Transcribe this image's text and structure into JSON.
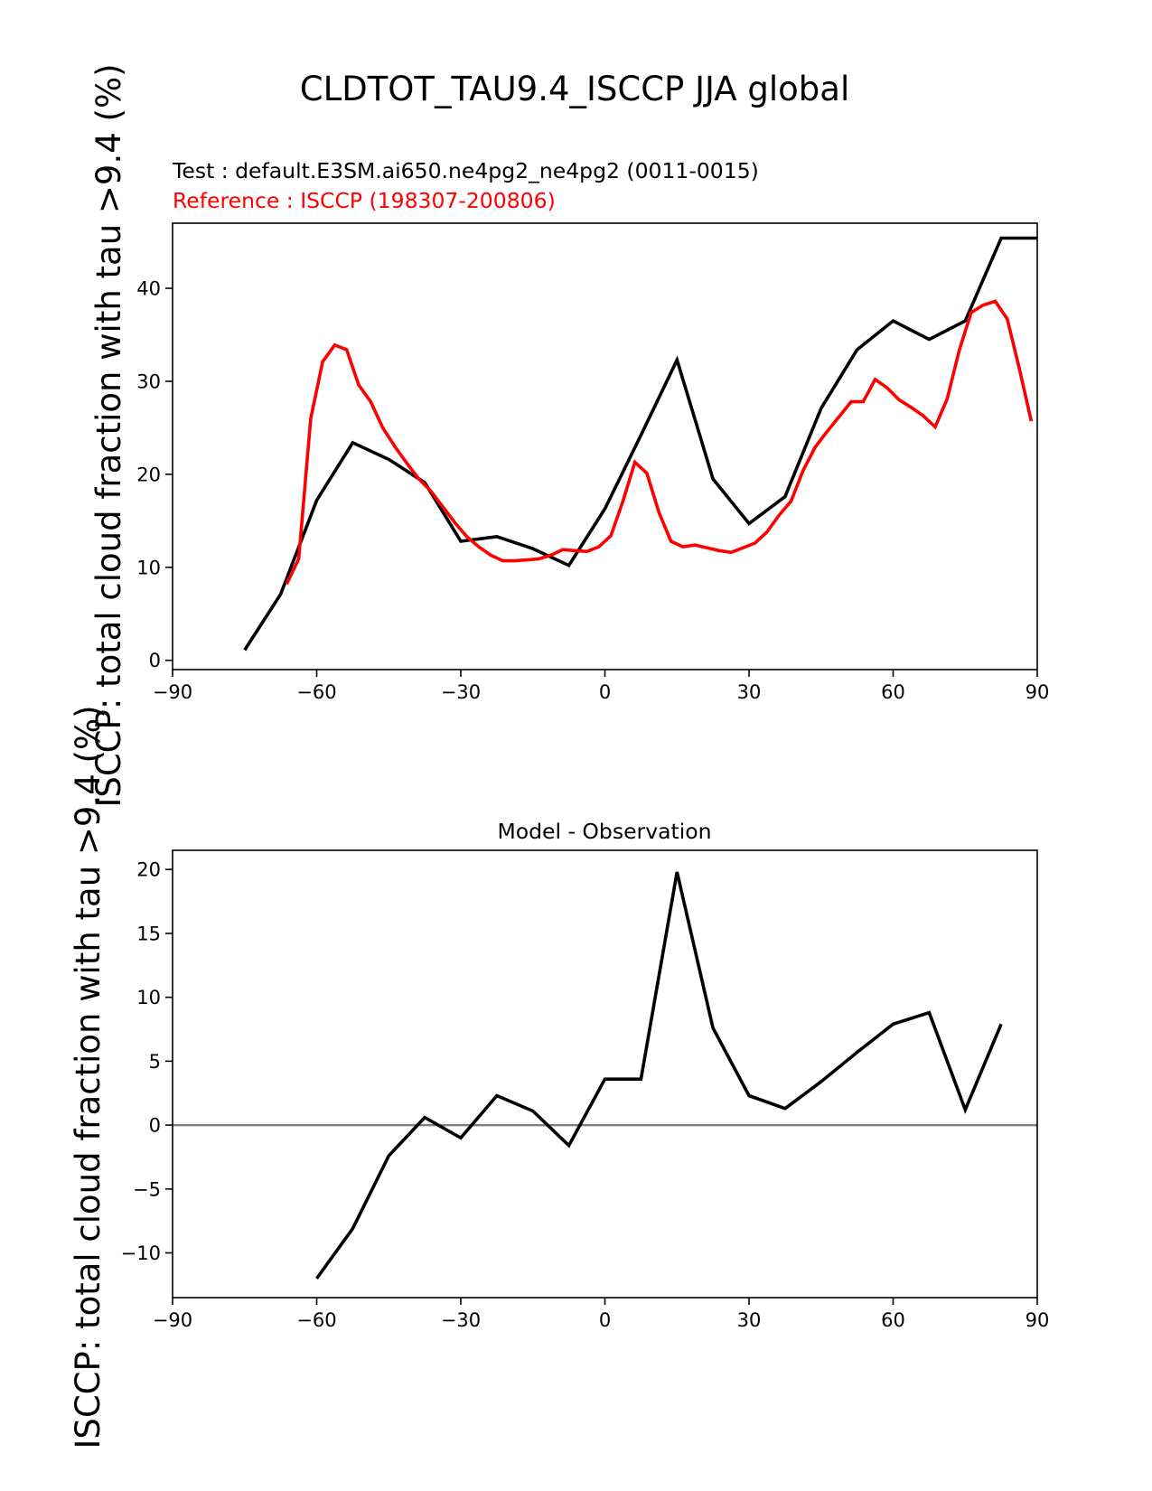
{
  "figure": {
    "title": "CLDTOT_TAU9.4_ISCCP JJA global",
    "test_label": "Test : default.E3SM.ai650.ne4pg2_ne4pg2 (0011-0015)",
    "reference_label": "Reference : ISCCP (198307-200806)",
    "diff_title": "Model - Observation",
    "ylabel": "ISCCP: total cloud fraction with tau >9.4 (%)",
    "colors": {
      "test": "#000000",
      "reference": "#ff0000",
      "zero_line": "#808080"
    }
  },
  "chart_data": [
    {
      "type": "line",
      "title": "",
      "xlabel": "",
      "ylabel": "ISCCP: total cloud fraction with tau >9.4 (%)",
      "xlim": [
        -90,
        90
      ],
      "ylim": [
        -1,
        47
      ],
      "xticks": [
        -90,
        -60,
        -30,
        0,
        30,
        60,
        90
      ],
      "yticks": [
        0,
        10,
        20,
        30,
        40
      ],
      "grid": false,
      "series": [
        {
          "name": "Test : default.E3SM.ai650.ne4pg2_ne4pg2 (0011-0015)",
          "color": "#000000",
          "x": [
            -75,
            -67.5,
            -60,
            -52.5,
            -45,
            -37.5,
            -30,
            -22.5,
            -15,
            -7.5,
            0,
            7.5,
            15,
            22.5,
            30,
            37.5,
            45,
            52.5,
            60,
            67.5,
            75,
            82.5,
            90
          ],
          "y": [
            1.1,
            7.1,
            17.2,
            23.4,
            21.6,
            19.1,
            12.8,
            13.3,
            12.0,
            10.2,
            16.3,
            24.2,
            32.3,
            19.5,
            14.7,
            17.6,
            27.1,
            33.4,
            36.5,
            34.5,
            36.5,
            45.4,
            45.4
          ]
        },
        {
          "name": "Reference : ISCCP (198307-200806)",
          "color": "#ff0000",
          "x": [
            -66.25,
            -63.75,
            -61.25,
            -58.75,
            -56.25,
            -53.75,
            -51.25,
            -48.75,
            -46.25,
            -43.75,
            -41.25,
            -38.75,
            -36.25,
            -33.75,
            -31.25,
            -28.75,
            -26.25,
            -23.75,
            -21.25,
            -18.75,
            -16.25,
            -13.75,
            -11.25,
            -8.75,
            -6.25,
            -3.75,
            -1.25,
            1.25,
            3.75,
            6.25,
            8.75,
            11.25,
            13.75,
            16.25,
            18.75,
            21.25,
            23.75,
            26.25,
            28.75,
            31.25,
            33.75,
            36.25,
            38.75,
            41.25,
            43.75,
            46.25,
            48.75,
            51.25,
            53.75,
            56.25,
            58.75,
            61.25,
            63.75,
            66.25,
            68.75,
            71.25,
            73.75,
            76.25,
            78.75,
            81.25,
            83.75,
            86.25,
            88.75
          ],
          "y": [
            8.2,
            10.9,
            26.0,
            32.1,
            33.9,
            33.4,
            29.6,
            27.8,
            25.0,
            23.0,
            21.2,
            19.5,
            18.2,
            16.5,
            14.8,
            13.3,
            12.2,
            11.3,
            10.7,
            10.7,
            10.8,
            10.9,
            11.3,
            11.9,
            11.8,
            11.7,
            12.2,
            13.4,
            17.1,
            21.3,
            20.1,
            15.9,
            12.8,
            12.2,
            12.4,
            12.1,
            11.8,
            11.6,
            12.1,
            12.6,
            13.8,
            15.6,
            17.1,
            20.4,
            22.9,
            24.6,
            26.2,
            27.8,
            27.8,
            30.2,
            29.3,
            28.0,
            27.2,
            26.3,
            25.1,
            28.1,
            33.3,
            37.4,
            38.2,
            38.6,
            36.7,
            31.4,
            25.7
          ]
        }
      ]
    },
    {
      "type": "line",
      "title": "Model - Observation",
      "xlabel": "",
      "ylabel": "ISCCP: total cloud fraction with tau >9.4 (%)",
      "xlim": [
        -90,
        90
      ],
      "ylim": [
        -13.5,
        21.5
      ],
      "xticks": [
        -90,
        -60,
        -30,
        0,
        30,
        60,
        90
      ],
      "yticks": [
        -10,
        -5,
        0,
        5,
        10,
        15,
        20
      ],
      "grid": false,
      "reference_line": 0,
      "series": [
        {
          "name": "",
          "color": "#000000",
          "x": [
            -60,
            -52.5,
            -45,
            -37.5,
            -30,
            -22.5,
            -15,
            -7.5,
            0,
            7.5,
            15,
            22.5,
            30,
            37.5,
            45,
            52.5,
            60,
            67.5,
            75,
            82.5
          ],
          "y": [
            -12.0,
            -8.1,
            -2.4,
            0.6,
            -1.0,
            2.3,
            1.1,
            -1.6,
            3.6,
            3.6,
            19.8,
            7.6,
            2.3,
            1.3,
            3.4,
            5.7,
            7.9,
            8.8,
            1.2,
            7.9
          ]
        }
      ]
    }
  ]
}
